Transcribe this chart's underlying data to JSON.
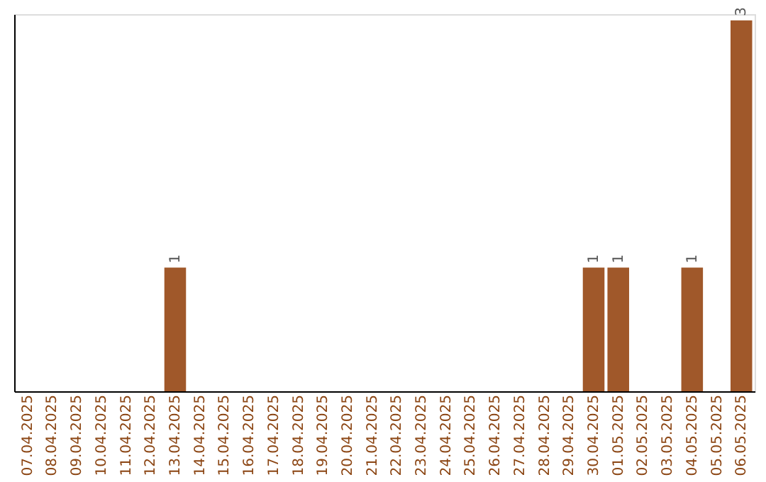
{
  "chart_data": {
    "type": "bar",
    "categories": [
      "07.04.2025",
      "08.04.2025",
      "09.04.2025",
      "10.04.2025",
      "11.04.2025",
      "12.04.2025",
      "13.04.2025",
      "14.04.2025",
      "15.04.2025",
      "16.04.2025",
      "17.04.2025",
      "18.04.2025",
      "19.04.2025",
      "20.04.2025",
      "21.04.2025",
      "22.04.2025",
      "23.04.2025",
      "24.04.2025",
      "25.04.2025",
      "26.04.2025",
      "27.04.2025",
      "28.04.2025",
      "29.04.2025",
      "30.04.2025",
      "01.05.2025",
      "02.05.2025",
      "03.05.2025",
      "04.05.2025",
      "05.05.2025",
      "06.05.2025"
    ],
    "values": [
      0,
      0,
      0,
      0,
      0,
      0,
      1,
      0,
      0,
      0,
      0,
      0,
      0,
      0,
      0,
      0,
      0,
      0,
      0,
      0,
      0,
      0,
      0,
      1,
      1,
      0,
      0,
      1,
      0,
      3
    ],
    "value_labels": [
      null,
      null,
      null,
      null,
      null,
      null,
      "1",
      null,
      null,
      null,
      null,
      null,
      null,
      null,
      null,
      null,
      null,
      null,
      null,
      null,
      null,
      null,
      null,
      "1",
      "1",
      null,
      null,
      "1",
      null,
      "3"
    ],
    "color": "#a0582a",
    "ylim": [
      0,
      3.05
    ],
    "tick_labels": "x",
    "grid": false
  }
}
